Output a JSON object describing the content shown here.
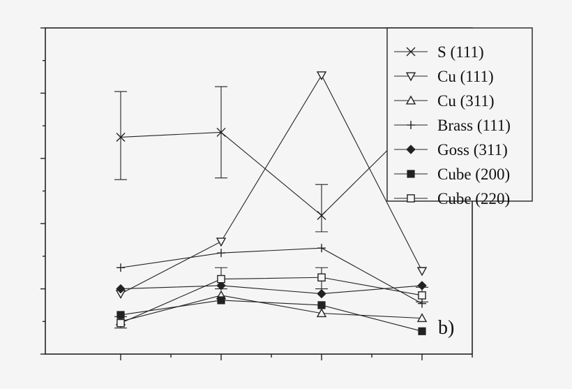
{
  "chart_data": {
    "type": "line",
    "title": "",
    "xlabel": "",
    "ylabel": "",
    "panel_label": "b)",
    "x": [
      1,
      2,
      3,
      4
    ],
    "xlim": [
      0.25,
      4.5
    ],
    "ylim": [
      0,
      10
    ],
    "grid": false,
    "legend_placement": "top-right",
    "series": [
      {
        "name": "S (111)",
        "marker": "x",
        "values": [
          6.65,
          6.8,
          4.25,
          7.3
        ],
        "errors": [
          [
            5.35,
            8.05
          ],
          [
            5.4,
            8.2
          ],
          [
            3.75,
            5.2
          ],
          [
            5.85,
            8.75
          ]
        ]
      },
      {
        "name": "Cu (111)",
        "marker": "triangle-down-open",
        "values": [
          1.85,
          3.45,
          8.55,
          2.55
        ],
        "errors": null
      },
      {
        "name": "Cu (311)",
        "marker": "triangle-up-open",
        "values": [
          1.0,
          1.8,
          1.25,
          1.1
        ],
        "errors": null
      },
      {
        "name": "Brass (111)",
        "marker": "plus",
        "values": [
          2.65,
          3.1,
          3.25,
          1.55
        ],
        "errors": null
      },
      {
        "name": "Goss (311)",
        "marker": "diamond-filled",
        "values": [
          2.0,
          2.1,
          1.85,
          2.1
        ],
        "errors": null
      },
      {
        "name": "Cube (200)",
        "marker": "square-filled",
        "values": [
          1.2,
          1.65,
          1.5,
          0.7
        ],
        "errors": null
      },
      {
        "name": "Cube (220)",
        "marker": "square-open",
        "values": [
          0.95,
          2.3,
          2.35,
          1.8
        ],
        "errors": [
          [
            0.8,
            1.15
          ],
          [
            2.0,
            2.65
          ],
          [
            2.0,
            2.65
          ],
          [
            1.6,
            2.05
          ]
        ]
      }
    ]
  }
}
